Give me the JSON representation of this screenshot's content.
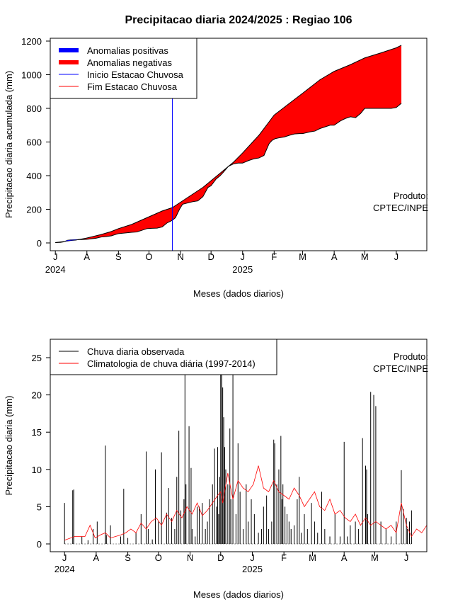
{
  "title": "Precipitacao diaria 2024/2025 : Regiao 106",
  "product_credit": [
    "Produto:",
    "CPTEC/INPE"
  ],
  "colors": {
    "positive_anomaly": "#0000ff",
    "negative_anomaly": "#ff0000",
    "season_start_line": "#0000ff",
    "season_end_line": "#ff0000",
    "observed_rain": "#000000",
    "climatology": "#ff0000"
  },
  "chart_data": [
    {
      "type": "area",
      "name": "accumulated",
      "ylabel": "Precipitacao diaria acumulada (mm)",
      "xlabel": "Meses (dados diarios)",
      "ylim": [
        0,
        1200
      ],
      "yticks": [
        0,
        200,
        400,
        600,
        800,
        1000,
        1200
      ],
      "x_months": [
        "J",
        "A",
        "S",
        "O",
        "N",
        "D",
        "J",
        "F",
        "M",
        "A",
        "M",
        "J"
      ],
      "x_month_start_days": [
        0,
        31,
        62,
        92,
        123,
        153,
        184,
        215,
        243,
        274,
        304,
        335
      ],
      "x_year_labels": [
        {
          "label": "2024",
          "day": 0
        },
        {
          "label": "2025",
          "day": 184
        }
      ],
      "x_unit": "days since start of July 2024",
      "xlim": [
        -5,
        365
      ],
      "legend": {
        "position": "top-left",
        "entries": [
          {
            "label": "Anomalias positivas",
            "style": "thick",
            "color": "#0000ff"
          },
          {
            "label": "Anomalias negativas",
            "style": "thick",
            "color": "#ff0000"
          },
          {
            "label": "Inicio Estacao Chuvosa",
            "style": "thin",
            "color": "#0000ff"
          },
          {
            "label": "Fim Estacao Chuvosa",
            "style": "thin",
            "color": "#ff0000"
          }
        ]
      },
      "season_start_day": 115,
      "climatology_accumulated": {
        "x": [
          0,
          8,
          15,
          20,
          30,
          45,
          55,
          62,
          75,
          90,
          105,
          115,
          125,
          135,
          145,
          153,
          165,
          175,
          184,
          200,
          215,
          230,
          243,
          260,
          274,
          290,
          304,
          320,
          330,
          335,
          340
        ],
        "y": [
          2,
          8,
          14,
          17,
          28,
          50,
          68,
          85,
          110,
          150,
          190,
          210,
          250,
          290,
          330,
          370,
          430,
          480,
          535,
          640,
          760,
          830,
          890,
          970,
          1020,
          1060,
          1100,
          1130,
          1150,
          1160,
          1175
        ]
      },
      "observed_accumulated": {
        "x": [
          0,
          5,
          8,
          12,
          15,
          20,
          25,
          30,
          32,
          40,
          45,
          50,
          55,
          60,
          62,
          70,
          75,
          80,
          85,
          90,
          95,
          100,
          105,
          110,
          113,
          115,
          118,
          122,
          125,
          130,
          135,
          140,
          145,
          150,
          153,
          158,
          162,
          165,
          170,
          175,
          180,
          184,
          190,
          195,
          200,
          205,
          210,
          213,
          216,
          220,
          225,
          230,
          235,
          240,
          243,
          250,
          255,
          260,
          265,
          270,
          274,
          280,
          285,
          290,
          295,
          300,
          304,
          310,
          315,
          320,
          325,
          330,
          335,
          340
        ],
        "y": [
          2,
          3,
          6,
          16,
          18,
          19,
          20,
          21,
          22,
          28,
          35,
          38,
          42,
          52,
          55,
          60,
          63,
          65,
          75,
          85,
          87,
          88,
          95,
          120,
          128,
          135,
          150,
          200,
          230,
          238,
          245,
          250,
          275,
          330,
          340,
          380,
          400,
          420,
          455,
          470,
          475,
          475,
          490,
          500,
          505,
          520,
          590,
          610,
          620,
          625,
          630,
          640,
          648,
          650,
          650,
          660,
          665,
          680,
          690,
          700,
          700,
          725,
          740,
          750,
          745,
          770,
          800,
          800,
          800,
          800,
          800,
          800,
          805,
          830
        ]
      }
    },
    {
      "type": "line",
      "name": "daily",
      "ylabel": "Precipitacao diaria (mm)",
      "xlabel": "Meses (dados diarios)",
      "ylim": [
        0,
        25
      ],
      "yticks": [
        0,
        5,
        10,
        15,
        20,
        25
      ],
      "x_months": [
        "J",
        "A",
        "S",
        "O",
        "N",
        "D",
        "J",
        "F",
        "M",
        "A",
        "M",
        "J"
      ],
      "x_month_start_days": [
        0,
        31,
        62,
        92,
        123,
        153,
        184,
        215,
        243,
        274,
        304,
        335
      ],
      "x_year_labels": [
        {
          "label": "2024",
          "day": 0
        },
        {
          "label": "2025",
          "day": 184
        }
      ],
      "xlim": [
        -14,
        355
      ],
      "legend": {
        "position": "top-left",
        "entries": [
          {
            "label": "Chuva diaria observada",
            "color": "#000000"
          },
          {
            "label": "Climatologia de chuva diária (1997-2014)",
            "color": "#ff0000"
          }
        ]
      },
      "series": [
        {
          "name": "Chuva diaria observada",
          "kind": "bars",
          "x": [
            0,
            8,
            9,
            17,
            23,
            28,
            32,
            40,
            41,
            45,
            55,
            58,
            62,
            70,
            75,
            80,
            82,
            86,
            89,
            92,
            95,
            100,
            102,
            105,
            108,
            110,
            112,
            114,
            117,
            118,
            119,
            122,
            124,
            125,
            128,
            130,
            132,
            135,
            138,
            140,
            142,
            145,
            147,
            149,
            150,
            151,
            152,
            153,
            154,
            155,
            156,
            157,
            158,
            160,
            162,
            163,
            165,
            168,
            170,
            172,
            175,
            178,
            180,
            183,
            186,
            190,
            193,
            195,
            198,
            200,
            203,
            205,
            206,
            208,
            210,
            212,
            213,
            214,
            216,
            218,
            220,
            222,
            225,
            228,
            230,
            232,
            235,
            238,
            242,
            245,
            248,
            252,
            255,
            260,
            265,
            270,
            274,
            277,
            280,
            285,
            288,
            292,
            295,
            296,
            297,
            300,
            303,
            305,
            310,
            315,
            320,
            325,
            330,
            332,
            335,
            336,
            338,
            340
          ],
          "y": [
            5.5,
            7.2,
            7.3,
            1.0,
            0.5,
            2.0,
            3.0,
            13.2,
            1.2,
            2.5,
            1.0,
            7.4,
            0.8,
            1.5,
            4.0,
            12.4,
            2.0,
            0.6,
            10.0,
            3.0,
            12.3,
            4.2,
            7.5,
            3.5,
            2.0,
            9.0,
            15.2,
            4.5,
            6.0,
            23.0,
            8.0,
            15.8,
            10.2,
            2.0,
            1.0,
            5.0,
            5.0,
            5.5,
            2.0,
            3.0,
            6.0,
            8.0,
            12.8,
            5.0,
            13.0,
            4.0,
            9.0,
            23.0,
            23.0,
            21.0,
            17.0,
            13.0,
            10.0,
            8.0,
            15.5,
            6.0,
            23.0,
            4.0,
            13.5,
            7.0,
            2.0,
            8.0,
            3.0,
            6.0,
            4.0,
            1.5,
            2.0,
            5.0,
            6.5,
            2.0,
            3.0,
            14.0,
            13.5,
            8.0,
            10.0,
            14.5,
            6.0,
            8.0,
            5.0,
            4.0,
            3.0,
            2.0,
            2.5,
            6.0,
            9.0,
            1.5,
            4.0,
            2.0,
            5.5,
            3.0,
            1.5,
            7.0,
            2.0,
            1.0,
            4.0,
            1.0,
            13.7,
            1.0,
            2.5,
            3.0,
            2.0,
            14.2,
            10.5,
            10.0,
            4.0,
            20.4,
            20.0,
            18.5,
            3.0,
            2.0,
            1.0,
            3.0,
            9.9,
            4.7,
            3.5,
            2.0,
            3.0,
            4.5
          ]
        },
        {
          "name": "Climatologia de chuva diária (1997-2014)",
          "kind": "line",
          "x": [
            0,
            10,
            20,
            25,
            30,
            35,
            40,
            45,
            50,
            55,
            60,
            65,
            70,
            75,
            80,
            85,
            90,
            95,
            100,
            105,
            110,
            115,
            120,
            125,
            130,
            135,
            140,
            145,
            150,
            153,
            155,
            160,
            165,
            170,
            175,
            180,
            185,
            190,
            195,
            200,
            205,
            210,
            215,
            220,
            225,
            230,
            235,
            240,
            245,
            250,
            255,
            260,
            265,
            270,
            275,
            280,
            285,
            290,
            295,
            300,
            305,
            310,
            315,
            320,
            325,
            330,
            335,
            340,
            345,
            350,
            355
          ],
          "y": [
            0.5,
            1.0,
            1.0,
            2.5,
            0.8,
            1.2,
            1.5,
            0.8,
            1.0,
            1.2,
            1.5,
            2.0,
            1.5,
            2.8,
            2.0,
            3.0,
            3.5,
            2.5,
            4.0,
            3.0,
            4.5,
            3.5,
            5.0,
            4.0,
            5.5,
            3.8,
            4.5,
            5.5,
            6.5,
            7.0,
            5.5,
            9.5,
            6.0,
            8.5,
            7.5,
            7.0,
            8.0,
            10.5,
            7.5,
            7.0,
            8.5,
            7.0,
            6.5,
            6.0,
            7.5,
            6.5,
            5.0,
            6.0,
            7.0,
            5.0,
            4.5,
            6.0,
            4.0,
            4.5,
            3.5,
            3.0,
            4.0,
            2.5,
            3.5,
            2.5,
            3.0,
            2.5,
            2.0,
            2.5,
            1.5,
            5.5,
            2.5,
            1.0,
            2.0,
            1.5,
            2.5
          ]
        }
      ]
    }
  ]
}
